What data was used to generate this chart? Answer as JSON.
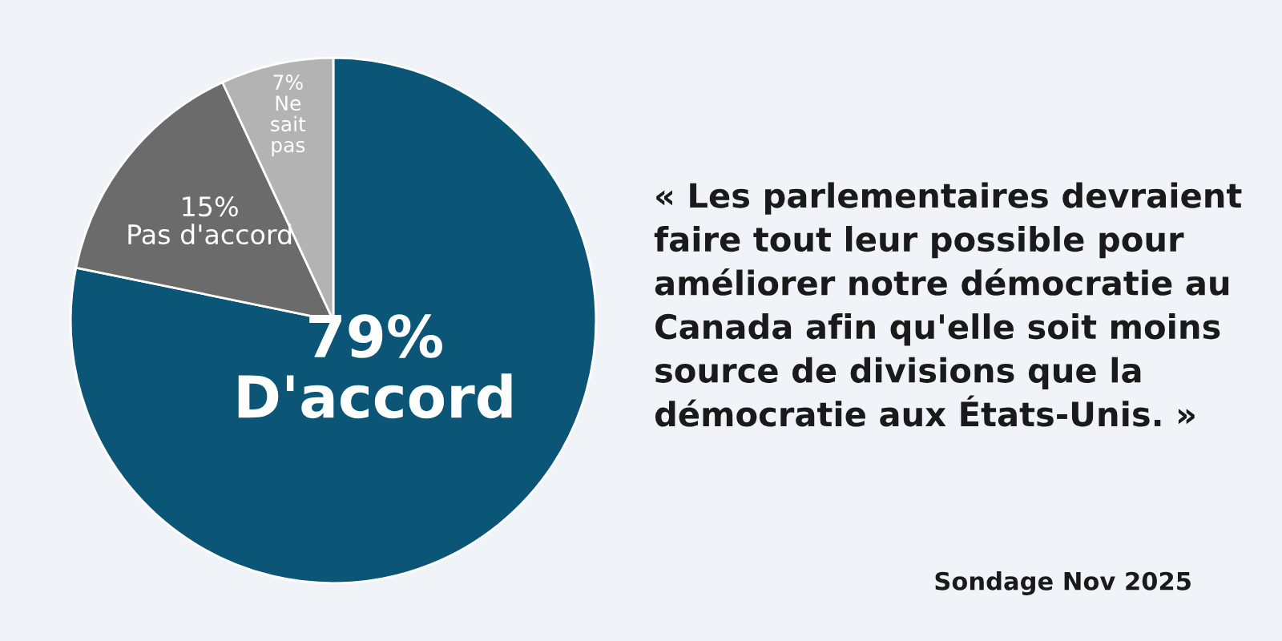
{
  "chart_data": {
    "type": "pie",
    "categories": [
      "D'accord",
      "Pas d'accord",
      "Ne sait pas"
    ],
    "values": [
      79,
      15,
      7
    ],
    "value_labels": [
      "79%",
      "15%",
      "7%"
    ],
    "colors": [
      "#0b5577",
      "#6b6b6b",
      "#b3b3b3"
    ],
    "annotations": [
      "« Les parlementaires devraient\nfaire tout leur possible pour\naméliorer notre démocratie au\nCanada afin qu'elle soit moins\nsource de divisions que la\ndémocratie aux États-Unis. »",
      "Sondage Nov 2025"
    ]
  }
}
